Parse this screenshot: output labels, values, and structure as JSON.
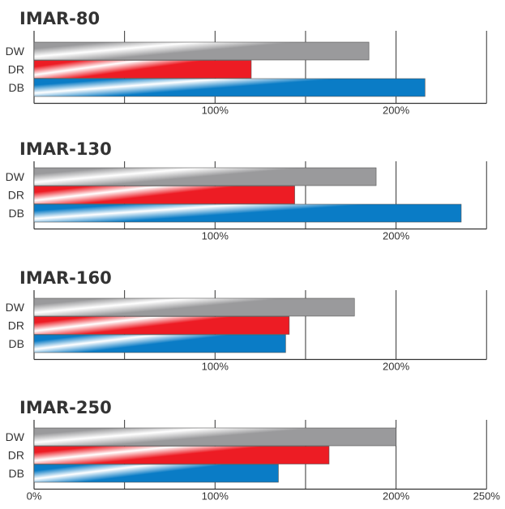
{
  "chart_data": [
    {
      "type": "bar",
      "orientation": "horizontal",
      "title": "IMAR-80",
      "categories": [
        "DW",
        "DR",
        "DB"
      ],
      "values": [
        185,
        120,
        216
      ],
      "unit": "%",
      "xlim": [
        0,
        250
      ],
      "grid": true,
      "tick_labels": [
        "100%",
        "200%"
      ]
    },
    {
      "type": "bar",
      "orientation": "horizontal",
      "title": "IMAR-130",
      "categories": [
        "DW",
        "DR",
        "DB"
      ],
      "values": [
        189,
        144,
        236
      ],
      "unit": "%",
      "xlim": [
        0,
        250
      ],
      "grid": true,
      "tick_labels": [
        "100%",
        "200%"
      ]
    },
    {
      "type": "bar",
      "orientation": "horizontal",
      "title": "IMAR-160",
      "categories": [
        "DW",
        "DR",
        "DB"
      ],
      "values": [
        177,
        141,
        139
      ],
      "unit": "%",
      "xlim": [
        0,
        250
      ],
      "grid": true,
      "tick_labels": [
        "100%",
        "200%"
      ]
    },
    {
      "type": "bar",
      "orientation": "horizontal",
      "title": "IMAR-250",
      "categories": [
        "DW",
        "DR",
        "DB"
      ],
      "values": [
        200,
        163,
        135
      ],
      "unit": "%",
      "xlim": [
        0,
        250
      ],
      "grid": true,
      "tick_labels": [
        "0%",
        "100%",
        "200%",
        "250%"
      ]
    }
  ],
  "colors": {
    "DW": {
      "base": "#9a9a9c",
      "highlight": "#ffffff"
    },
    "DR": {
      "base": "#ed1c24",
      "highlight": "#ffffff"
    },
    "DB": {
      "base": "#0a7cc6",
      "highlight": "#ffffff"
    }
  }
}
